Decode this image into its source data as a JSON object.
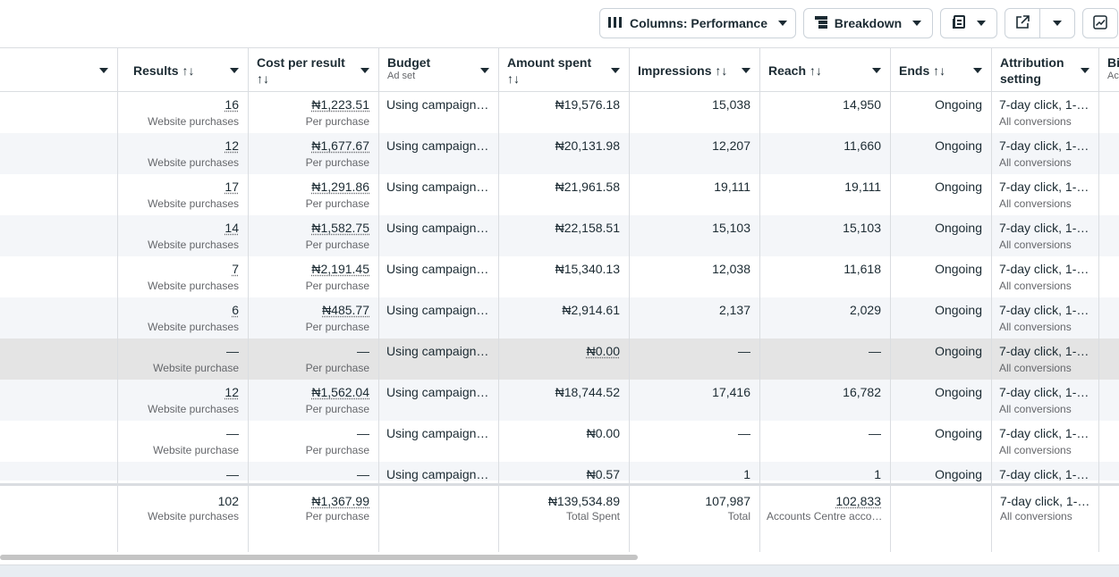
{
  "toolbar": {
    "columns_label": "Columns: Performance",
    "breakdown_label": "Breakdown"
  },
  "columns": {
    "results": {
      "title": "Results ↑↓"
    },
    "cost": {
      "title": "Cost per result",
      "sort": "↑↓"
    },
    "budget": {
      "title": "Budget",
      "sub": "Ad set"
    },
    "amount": {
      "title": "Amount spent",
      "sort": "↑↓"
    },
    "impressions": {
      "title": "Impressions ↑↓"
    },
    "reach": {
      "title": "Reach ↑↓"
    },
    "ends": {
      "title": "Ends ↑↓"
    },
    "attribution": {
      "title": "Attribution",
      "title2": "setting"
    },
    "bid": {
      "title": "Bi",
      "sub": "Ac"
    }
  },
  "rows": [
    {
      "results": "16",
      "results_sub": "Website purchases",
      "cost": "₦1,223.51",
      "cost_sub": "Per purchase",
      "budget": "Using campaign…",
      "amount": "₦19,576.18",
      "impressions": "15,038",
      "reach": "14,950",
      "ends": "Ongoing",
      "attribution": "7-day click, 1-…",
      "attribution_sub": "All conversions"
    },
    {
      "results": "12",
      "results_sub": "Website purchases",
      "cost": "₦1,677.67",
      "cost_sub": "Per purchase",
      "budget": "Using campaign…",
      "amount": "₦20,131.98",
      "impressions": "12,207",
      "reach": "11,660",
      "ends": "Ongoing",
      "attribution": "7-day click, 1-…",
      "attribution_sub": "All conversions"
    },
    {
      "results": "17",
      "results_sub": "Website purchases",
      "cost": "₦1,291.86",
      "cost_sub": "Per purchase",
      "budget": "Using campaign…",
      "amount": "₦21,961.58",
      "impressions": "19,111",
      "reach": "19,111",
      "ends": "Ongoing",
      "attribution": "7-day click, 1-…",
      "attribution_sub": "All conversions"
    },
    {
      "results": "14",
      "results_sub": "Website purchases",
      "cost": "₦1,582.75",
      "cost_sub": "Per purchase",
      "budget": "Using campaign…",
      "amount": "₦22,158.51",
      "impressions": "15,103",
      "reach": "15,103",
      "ends": "Ongoing",
      "attribution": "7-day click, 1-…",
      "attribution_sub": "All conversions"
    },
    {
      "results": "7",
      "results_sub": "Website purchases",
      "cost": "₦2,191.45",
      "cost_sub": "Per purchase",
      "budget": "Using campaign…",
      "amount": "₦15,340.13",
      "impressions": "12,038",
      "reach": "11,618",
      "ends": "Ongoing",
      "attribution": "7-day click, 1-…",
      "attribution_sub": "All conversions"
    },
    {
      "results": "6",
      "results_sub": "Website purchases",
      "cost": "₦485.77",
      "cost_sub": "Per purchase",
      "budget": "Using campaign…",
      "amount": "₦2,914.61",
      "impressions": "2,137",
      "reach": "2,029",
      "ends": "Ongoing",
      "attribution": "7-day click, 1-…",
      "attribution_sub": "All conversions"
    },
    {
      "results": "—",
      "results_sub": "Website purchase",
      "cost": "—",
      "cost_sub": "Per purchase",
      "budget": "Using campaign…",
      "amount": "₦0.00",
      "impressions": "—",
      "reach": "—",
      "ends": "Ongoing",
      "attribution": "7-day click, 1-…",
      "attribution_sub": "All conversions"
    },
    {
      "results": "12",
      "results_sub": "Website purchases",
      "cost": "₦1,562.04",
      "cost_sub": "Per purchase",
      "budget": "Using campaign…",
      "amount": "₦18,744.52",
      "impressions": "17,416",
      "reach": "16,782",
      "ends": "Ongoing",
      "attribution": "7-day click, 1-…",
      "attribution_sub": "All conversions"
    },
    {
      "results": "—",
      "results_sub": "Website purchase",
      "cost": "—",
      "cost_sub": "Per purchase",
      "budget": "Using campaign…",
      "amount": "₦0.00",
      "impressions": "—",
      "reach": "—",
      "ends": "Ongoing",
      "attribution": "7-day click, 1-…",
      "attribution_sub": "All conversions"
    },
    {
      "results": "—",
      "results_sub": "",
      "cost": "—",
      "cost_sub": "",
      "budget": "Using campaign…",
      "amount": "₦0.57",
      "impressions": "1",
      "reach": "1",
      "ends": "Ongoing",
      "attribution": "7-day click, 1-…",
      "attribution_sub": ""
    }
  ],
  "totals": {
    "results": "102",
    "results_sub": "Website purchases",
    "cost": "₦1,367.99",
    "cost_sub": "Per purchase",
    "amount": "₦139,534.89",
    "amount_sub": "Total Spent",
    "impressions": "107,987",
    "impressions_sub": "Total",
    "reach": "102,833",
    "reach_sub": "Accounts Centre acco…",
    "attribution": "7-day click, 1-…",
    "attribution_sub": "All conversions"
  },
  "colors": {
    "border": "#dadde1",
    "alt_row": "#f4f6f9",
    "selected_row": "#e4e4e4",
    "text": "#1c2b33",
    "muted": "#65676b"
  }
}
